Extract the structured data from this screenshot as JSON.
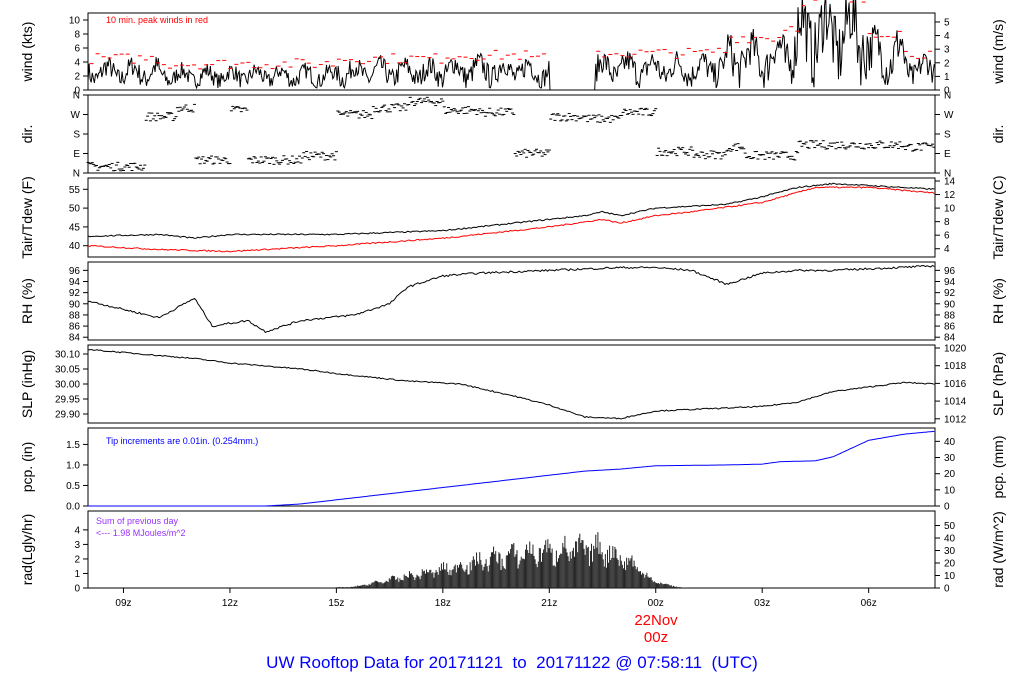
{
  "chart_data": {
    "type": "line",
    "title": "UW Rooftop Data for 20171121  to  20171122 @ 07:58:11  (UTC)",
    "x_range_hours": [
      8.0,
      31.87
    ],
    "x_ticks": [
      {
        "h": 9,
        "label": "09z"
      },
      {
        "h": 12,
        "label": "12z"
      },
      {
        "h": 15,
        "label": "15z"
      },
      {
        "h": 18,
        "label": "18z"
      },
      {
        "h": 21,
        "label": "21z"
      },
      {
        "h": 24,
        "label": "00z"
      },
      {
        "h": 27,
        "label": "03z"
      },
      {
        "h": 30,
        "label": "06z"
      }
    ],
    "date_marker": {
      "date": "22Nov",
      "time": "00z"
    },
    "panels": [
      {
        "id": "wind",
        "ylabel": "wind (kts)",
        "ylabel_right": "wind (m/s)",
        "ylim": [
          0,
          11
        ],
        "yticks": [
          "0",
          "2",
          "4",
          "6",
          "8",
          "10"
        ],
        "yticks_vals": [
          0,
          2,
          4,
          6,
          8,
          10
        ],
        "right_ticks": [
          "0",
          "1",
          "2",
          "3",
          "4",
          "5"
        ],
        "right_vals": [
          0,
          1.944,
          3.888,
          5.832,
          7.776,
          9.72
        ],
        "annotation": "10 min. peak winds in red",
        "base_levels": [
          [
            8,
            2.5
          ],
          [
            10,
            2
          ],
          [
            13,
            2
          ],
          [
            15,
            2.5
          ],
          [
            18,
            2.8
          ],
          [
            20.5,
            2.5
          ],
          [
            21,
            0
          ],
          [
            22.2,
            0
          ],
          [
            22.3,
            3
          ],
          [
            25.5,
            3.2
          ],
          [
            26,
            4.5
          ],
          [
            27.5,
            5.5
          ],
          [
            28,
            8
          ],
          [
            29.5,
            8
          ],
          [
            30,
            5
          ],
          [
            31,
            3
          ],
          [
            31.87,
            2
          ]
        ]
      },
      {
        "id": "dir",
        "ylabel": "dir.",
        "ylabel_right": "dir.",
        "ylim": [
          0,
          360
        ],
        "yticks": [
          "N",
          "E",
          "S",
          "W",
          "N"
        ],
        "yticks_vals": [
          0,
          90,
          180,
          270,
          360
        ],
        "right_ticks": [
          "N",
          "E",
          "S",
          "W",
          "N"
        ],
        "right_vals": [
          0,
          90,
          180,
          270,
          360
        ],
        "segments": [
          [
            8,
            30
          ],
          [
            9.5,
            30
          ],
          [
            9.6,
            260
          ],
          [
            10.5,
            300
          ],
          [
            11,
            60
          ],
          [
            12,
            290
          ],
          [
            12.5,
            60
          ],
          [
            14,
            80
          ],
          [
            15,
            270
          ],
          [
            16,
            300
          ],
          [
            17,
            330
          ],
          [
            18,
            290
          ],
          [
            19,
            280
          ],
          [
            20,
            90
          ],
          [
            21,
            260
          ],
          [
            22,
            250
          ],
          [
            23,
            280
          ],
          [
            24,
            100
          ],
          [
            25,
            85
          ],
          [
            26,
            120
          ],
          [
            26.5,
            80
          ],
          [
            28,
            130
          ],
          [
            30,
            130
          ],
          [
            31,
            120
          ],
          [
            31.87,
            70
          ]
        ]
      },
      {
        "id": "temp",
        "ylabel": "Tair/Tdew (F)",
        "ylabel_right": "Tair/Tdew (C)",
        "ylim": [
          37,
          58
        ],
        "yticks": [
          "40",
          "45",
          "50",
          "55"
        ],
        "yticks_vals": [
          40,
          45,
          50,
          55
        ],
        "right_ticks": [
          "4",
          "6",
          "8",
          "10",
          "12",
          "14"
        ],
        "right_vals": [
          39.2,
          42.8,
          46.4,
          50,
          53.6,
          57.2
        ],
        "series": [
          {
            "name": "Tair",
            "color": "#000000",
            "points": [
              [
                8,
                42.5
              ],
              [
                10,
                43
              ],
              [
                11,
                42
              ],
              [
                12,
                43
              ],
              [
                15,
                43
              ],
              [
                18,
                44
              ],
              [
                20,
                46
              ],
              [
                22,
                48
              ],
              [
                22.5,
                49
              ],
              [
                23,
                48
              ],
              [
                24,
                50
              ],
              [
                26,
                51
              ],
              [
                27,
                53
              ],
              [
                28,
                55.5
              ],
              [
                29,
                56.5
              ],
              [
                30,
                56
              ],
              [
                31.87,
                55
              ]
            ]
          },
          {
            "name": "Tdew",
            "color": "#ff0000",
            "points": [
              [
                8,
                40
              ],
              [
                10,
                39
              ],
              [
                12,
                38.5
              ],
              [
                15,
                40
              ],
              [
                18,
                42
              ],
              [
                21,
                45
              ],
              [
                22.5,
                47
              ],
              [
                23,
                46
              ],
              [
                24,
                48
              ],
              [
                25,
                49
              ],
              [
                27,
                51.5
              ],
              [
                28.5,
                55.5
              ],
              [
                30,
                55.5
              ],
              [
                31.87,
                54
              ]
            ]
          }
        ]
      },
      {
        "id": "rh",
        "ylabel": "RH (%)",
        "ylabel_right": "RH (%)",
        "ylim": [
          83.5,
          97.5
        ],
        "yticks": [
          "84",
          "86",
          "88",
          "90",
          "92",
          "94",
          "96"
        ],
        "yticks_vals": [
          84,
          86,
          88,
          90,
          92,
          94,
          96
        ],
        "right_ticks": [
          "84",
          "86",
          "88",
          "90",
          "92",
          "94",
          "96"
        ],
        "right_vals": [
          84,
          86,
          88,
          90,
          92,
          94,
          96
        ],
        "series": [
          {
            "name": "RH",
            "color": "#000000",
            "points": [
              [
                8,
                90.5
              ],
              [
                9,
                89
              ],
              [
                10,
                87.5
              ],
              [
                11,
                91
              ],
              [
                11.5,
                86
              ],
              [
                12.5,
                87
              ],
              [
                13,
                85
              ],
              [
                14,
                87
              ],
              [
                15.5,
                88
              ],
              [
                16.5,
                90
              ],
              [
                17,
                93
              ],
              [
                18,
                95
              ],
              [
                19,
                95.5
              ],
              [
                21,
                96
              ],
              [
                23,
                96.5
              ],
              [
                24,
                96.5
              ],
              [
                25,
                96
              ],
              [
                26,
                93.5
              ],
              [
                27,
                95.5
              ],
              [
                28,
                96
              ],
              [
                29,
                96
              ],
              [
                31.87,
                96.8
              ]
            ]
          }
        ]
      },
      {
        "id": "slp",
        "ylabel": "SLP (inHg)",
        "ylabel_right": "SLP (hPa)",
        "ylim": [
          29.87,
          30.13
        ],
        "yticks": [
          "29.90",
          "29.95",
          "30.00",
          "30.05",
          "30.10"
        ],
        "yticks_vals": [
          29.9,
          29.95,
          30.0,
          30.05,
          30.1
        ],
        "right_ticks": [
          "1012",
          "1014",
          "1016",
          "1018",
          "1020"
        ],
        "right_vals": [
          29.884,
          29.943,
          30.002,
          30.061,
          30.12
        ],
        "series": [
          {
            "name": "SLP",
            "color": "#000000",
            "points": [
              [
                8,
                30.115
              ],
              [
                10,
                30.095
              ],
              [
                11,
                30.085
              ],
              [
                12,
                30.07
              ],
              [
                14,
                30.05
              ],
              [
                15,
                30.035
              ],
              [
                17,
                30.01
              ],
              [
                18.5,
                30.0
              ],
              [
                20,
                29.96
              ],
              [
                21,
                29.93
              ],
              [
                22,
                29.89
              ],
              [
                23,
                29.885
              ],
              [
                24,
                29.91
              ],
              [
                26,
                29.92
              ],
              [
                27,
                29.925
              ],
              [
                28,
                29.94
              ],
              [
                29,
                29.975
              ],
              [
                30,
                29.99
              ],
              [
                31,
                30.005
              ],
              [
                31.87,
                30.0
              ]
            ]
          }
        ]
      },
      {
        "id": "pcp",
        "ylabel": "pcp. (in)",
        "ylabel_right": "pcp. (mm)",
        "ylim": [
          0,
          1.9
        ],
        "yticks": [
          "0.0",
          "0.5",
          "1.0",
          "1.5"
        ],
        "yticks_vals": [
          0,
          0.5,
          1.0,
          1.5
        ],
        "right_ticks": [
          "0",
          "10",
          "20",
          "30",
          "40"
        ],
        "right_vals": [
          0,
          0.394,
          0.787,
          1.181,
          1.575
        ],
        "annotation": "Tip increments are 0.01in. (0.254mm.)",
        "series": [
          {
            "name": "pcp",
            "color": "#0000ff",
            "points": [
              [
                8,
                0
              ],
              [
                13,
                0
              ],
              [
                14,
                0.05
              ],
              [
                15,
                0.15
              ],
              [
                16,
                0.25
              ],
              [
                17,
                0.35
              ],
              [
                18,
                0.45
              ],
              [
                19.5,
                0.6
              ],
              [
                21,
                0.75
              ],
              [
                22,
                0.85
              ],
              [
                23,
                0.9
              ],
              [
                24,
                0.98
              ],
              [
                26,
                1.0
              ],
              [
                27,
                1.02
              ],
              [
                27.5,
                1.08
              ],
              [
                28.5,
                1.1
              ],
              [
                29,
                1.2
              ],
              [
                29.5,
                1.4
              ],
              [
                30,
                1.6
              ],
              [
                31,
                1.75
              ],
              [
                31.87,
                1.82
              ]
            ]
          }
        ]
      },
      {
        "id": "rad",
        "ylabel": "rad(Lgly/hr)",
        "ylabel_right": "rad (W/m^2)",
        "ylim": [
          0,
          5.3
        ],
        "yticks": [
          "0",
          "1",
          "2",
          "3",
          "4"
        ],
        "yticks_vals": [
          0,
          1,
          2,
          3,
          4
        ],
        "right_ticks": [
          "0",
          "10",
          "20",
          "30",
          "40",
          "50"
        ],
        "right_vals": [
          0,
          0.86,
          1.72,
          2.58,
          3.44,
          4.3
        ],
        "annotation": [
          "Sum of previous day",
          "<--- 1.98 MJoules/m^2"
        ],
        "envelope": [
          [
            14.5,
            0
          ],
          [
            15.5,
            0.1
          ],
          [
            16.5,
            0.7
          ],
          [
            17.5,
            1.3
          ],
          [
            18.5,
            1.9
          ],
          [
            19.5,
            2.6
          ],
          [
            20.5,
            3.1
          ],
          [
            21.5,
            3.3
          ],
          [
            22.5,
            3.4
          ],
          [
            23.3,
            2.2
          ],
          [
            24,
            0.5
          ],
          [
            24.7,
            0.05
          ],
          [
            25,
            0
          ]
        ]
      }
    ]
  }
}
